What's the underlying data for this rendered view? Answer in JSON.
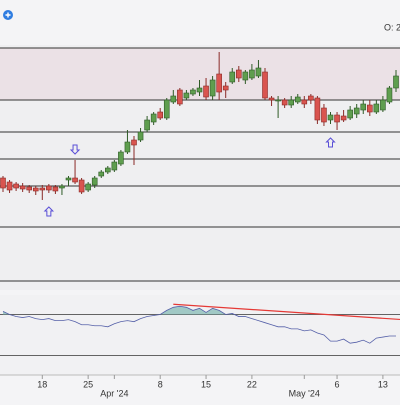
{
  "header": {
    "status": "O: 2,"
  },
  "chart_data": {
    "type": "candlestick",
    "categories": [
      null,
      null,
      null,
      null,
      null,
      null,
      "18",
      null,
      null,
      null,
      null,
      null,
      null,
      "25",
      null,
      null,
      null,
      "Apr '24",
      null,
      null,
      null,
      null,
      null,
      null,
      "8",
      null,
      null,
      null,
      null,
      null,
      null,
      "15",
      null,
      null,
      null,
      null,
      null,
      null,
      "22",
      null,
      null,
      null,
      null,
      null,
      null,
      null,
      "May '24",
      null,
      null,
      null,
      null,
      "6",
      null,
      null,
      null,
      null,
      null,
      null,
      "13",
      null,
      null
    ],
    "open": [
      122,
      118,
      116,
      114,
      113,
      112,
      112,
      114,
      113,
      112,
      120,
      122,
      120,
      110,
      115,
      124,
      128,
      130,
      136,
      148,
      160,
      160,
      170,
      178,
      188,
      182,
      198,
      210,
      202,
      206,
      208,
      214,
      204,
      226,
      214,
      218,
      230,
      220,
      222,
      224,
      228,
      202,
      200,
      200,
      195,
      198,
      200,
      204,
      202,
      192,
      180,
      185,
      184,
      182,
      186,
      190,
      195,
      188,
      190,
      198,
      212
    ],
    "high": [
      124,
      120,
      118,
      117,
      115,
      114,
      115,
      116,
      115,
      116,
      124,
      140,
      122,
      118,
      124,
      130,
      134,
      140,
      150,
      170,
      164,
      172,
      184,
      188,
      192,
      202,
      210,
      212,
      210,
      212,
      220,
      222,
      224,
      248,
      218,
      232,
      234,
      230,
      236,
      240,
      232,
      204,
      204,
      202,
      204,
      206,
      204,
      206,
      204,
      196,
      188,
      188,
      190,
      194,
      196,
      200,
      200,
      200,
      204,
      214,
      230
    ],
    "low": [
      108,
      107,
      109,
      108,
      107,
      105,
      100,
      107,
      106,
      105,
      114,
      116,
      106,
      108,
      112,
      122,
      126,
      128,
      134,
      146,
      135,
      158,
      168,
      175,
      180,
      180,
      196,
      194,
      200,
      204,
      204,
      200,
      200,
      200,
      202,
      216,
      218,
      216,
      220,
      222,
      200,
      194,
      182,
      192,
      192,
      196,
      192,
      196,
      176,
      174,
      176,
      170,
      178,
      180,
      182,
      186,
      184,
      186,
      188,
      196,
      208
    ],
    "close": [
      112,
      110,
      112,
      111,
      110,
      109,
      110,
      110,
      109,
      114,
      122,
      118,
      108,
      116,
      122,
      128,
      132,
      138,
      148,
      158,
      155,
      168,
      180,
      186,
      182,
      200,
      204,
      196,
      207,
      210,
      212,
      203,
      220,
      208,
      210,
      228,
      222,
      228,
      230,
      232,
      202,
      200,
      200,
      195,
      200,
      203,
      196,
      200,
      180,
      178,
      185,
      178,
      180,
      190,
      192,
      196,
      188,
      196,
      200,
      212,
      224
    ],
    "up_color": "#5f9e4f",
    "down_color": "#d9544f",
    "ylim": [
      10,
      255
    ],
    "levels": [
      252,
      200,
      168,
      141,
      114,
      73,
      19
    ],
    "zone": [
      200,
      252
    ],
    "signals": [
      {
        "index": 11,
        "direction": "down"
      },
      {
        "index": 7,
        "direction": "up"
      },
      {
        "index": 50,
        "direction": "up"
      }
    ],
    "signal_color": "#5a4fd6",
    "indicator": {
      "values": [
        73,
        70,
        68,
        67,
        68,
        66,
        65,
        66,
        64,
        64,
        65,
        63,
        60,
        60,
        59,
        59,
        58,
        61,
        63,
        64,
        63,
        66,
        68,
        69,
        70,
        74,
        77,
        78,
        77,
        74,
        76,
        72,
        76,
        74,
        70,
        71,
        68,
        68,
        66,
        64,
        62,
        60,
        58,
        58,
        56,
        56,
        54,
        55,
        52,
        50,
        44,
        44,
        46,
        42,
        43,
        45,
        42,
        47,
        48,
        49,
        49
      ],
      "color": "#5560a8",
      "ylim": [
        11,
        89
      ],
      "levels": [
        70,
        30
      ],
      "fill_color": "#7fb8b0",
      "trend_line": {
        "x": [
          26,
          61
        ],
        "values": [
          80,
          65
        ],
        "color": "#e53935"
      }
    }
  }
}
